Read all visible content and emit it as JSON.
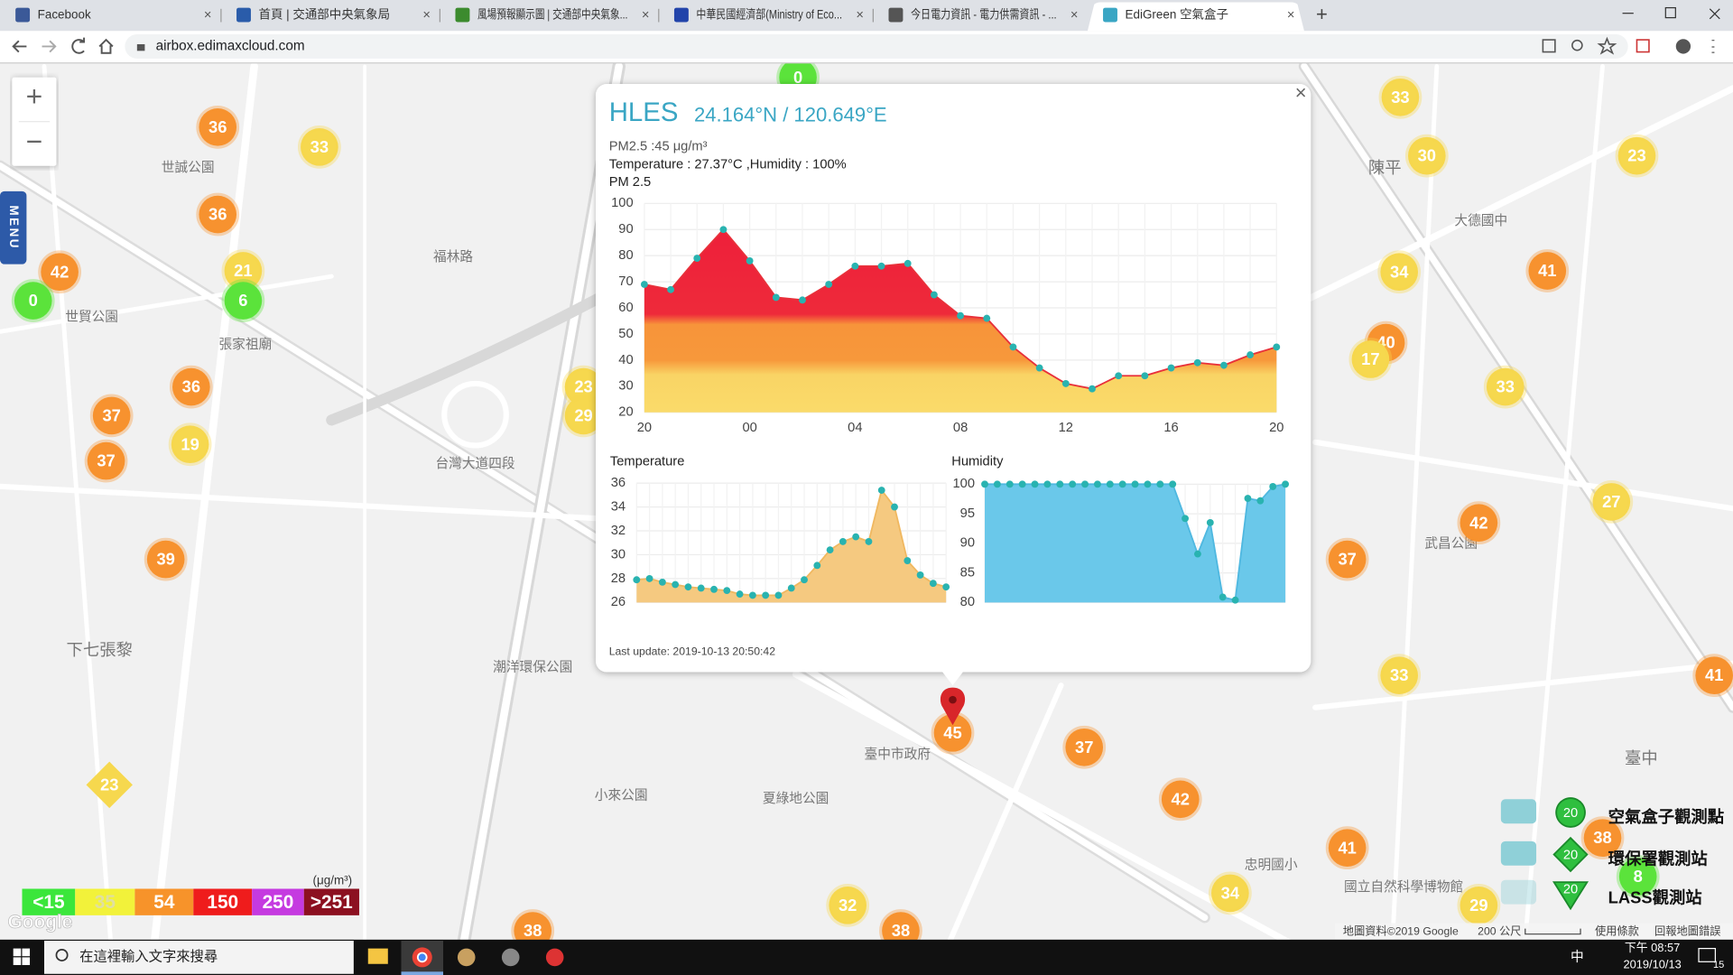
{
  "browser": {
    "tabs": [
      "Facebook",
      "首頁 | 交通部中央氣象局",
      "風場預報顯示圖 | 交通部中央氣象...",
      "中華民國經濟部(Ministry of Eco...",
      "今日電力資訊 - 電力供需資訊 - ...",
      "EdiGreen 空氣盒子"
    ],
    "url": "airbox.edimaxcloud.com"
  },
  "map": {
    "zoom_in": "+",
    "zoom_out": "−",
    "menu": "MENU",
    "markers": [
      {
        "label": 0,
        "color": "#5be33b"
      },
      {
        "label": 36,
        "color": "#f7922f"
      },
      {
        "label": 33,
        "color": "#f6d84e"
      },
      {
        "label": 36,
        "color": "#f7922f"
      },
      {
        "label": 42,
        "color": "#f7922f"
      },
      {
        "label": 21,
        "color": "#f6d84e"
      },
      {
        "label": 0,
        "color": "#5be33b"
      },
      {
        "label": 6,
        "color": "#5be33b"
      },
      {
        "label": 36,
        "color": "#f7922f"
      },
      {
        "label": 37,
        "color": "#f7922f"
      },
      {
        "label": 19,
        "color": "#f6d84e"
      },
      {
        "label": 37,
        "color": "#f7922f"
      },
      {
        "label": 23,
        "color": "#f6d84e"
      },
      {
        "label": 29,
        "color": "#f6d84e"
      },
      {
        "label": 39,
        "color": "#f7922f"
      },
      {
        "label": 33,
        "color": "#f6d84e"
      },
      {
        "label": 30,
        "color": "#f6d84e"
      },
      {
        "label": 23,
        "color": "#f6d84e"
      },
      {
        "label": 34,
        "color": "#f6d84e"
      },
      {
        "label": 41,
        "color": "#f7922f"
      },
      {
        "label": 40,
        "color": "#f7922f"
      },
      {
        "label": 17,
        "color": "#f6d84e"
      },
      {
        "label": 33,
        "color": "#f6d84e"
      },
      {
        "label": 27,
        "color": "#f6d84e"
      },
      {
        "label": 42,
        "color": "#f7922f"
      },
      {
        "label": 37,
        "color": "#f7922f"
      },
      {
        "label": 33,
        "color": "#f6d84e"
      },
      {
        "label": 41,
        "color": "#f7922f"
      },
      {
        "label": 45,
        "color": "#f7922f"
      },
      {
        "label": 37,
        "color": "#f7922f"
      },
      {
        "label": 42,
        "color": "#f7922f"
      },
      {
        "label": 41,
        "color": "#f7922f"
      },
      {
        "label": 38,
        "color": "#f7922f"
      },
      {
        "label": 8,
        "color": "#5be33b"
      },
      {
        "label": 34,
        "color": "#f6d84e"
      },
      {
        "label": 29,
        "color": "#f6d84e"
      },
      {
        "label": 32,
        "color": "#f6d84e"
      },
      {
        "label": 38,
        "color": "#f7922f"
      },
      {
        "label": 38,
        "color": "#f7922f"
      }
    ],
    "diamond_marker": {
      "label": 23,
      "color": "#f6d84e"
    },
    "places": [
      "世貿公園",
      "世誠公園",
      "福林路",
      "張家祖廟",
      "下七張黎",
      "臺中市政府",
      "夏綠地公園",
      "小來公園",
      "潮洋環保公園",
      "陳平",
      "大德國中",
      "武昌公園",
      "臺中",
      "國立自然科學博物館",
      "忠明國小",
      "台灣大道四段"
    ]
  },
  "legend": {
    "levels": [
      {
        "label": "<15",
        "color": "#3be63b"
      },
      {
        "label": "35",
        "color": "#f2f23a"
      },
      {
        "label": "54",
        "color": "#f7932a"
      },
      {
        "label": "150",
        "color": "#ef1c1c"
      },
      {
        "label": "250",
        "color": "#c53ae0"
      },
      {
        "label": ">251",
        "color": "#8c1020"
      }
    ],
    "unit": "(μg/m³)"
  },
  "station_legend": [
    {
      "label": "空氣盒子觀測點",
      "badge": "20"
    },
    {
      "label": "環保署觀測站",
      "badge": "20"
    },
    {
      "label": "LASS觀測站",
      "badge": "20"
    }
  ],
  "popup": {
    "title": "HLES",
    "coords": "24.164°N / 120.649°E",
    "pm25": "PM2.5 :45 μg/m³",
    "temp_hum": "Temperature : 27.37°C ,Humidity : 100%",
    "close": "×",
    "last_update": "Last update: 2019-10-13 20:50:42",
    "charts": [
      {
        "type": "area",
        "title": "PM 2.5",
        "categories": [
          "20",
          null,
          null,
          null,
          "00",
          null,
          null,
          null,
          "04",
          null,
          null,
          null,
          "08",
          null,
          null,
          null,
          "12",
          null,
          null,
          null,
          "16",
          null,
          null,
          null,
          "20"
        ],
        "values": [
          69,
          67,
          79,
          90,
          78,
          64,
          63,
          69,
          76,
          76,
          77,
          65,
          57,
          56,
          45,
          37,
          31,
          29,
          34,
          34,
          37,
          39,
          38,
          42,
          45
        ],
        "ylim": [
          20,
          100
        ],
        "yticks": [
          20,
          30,
          40,
          50,
          60,
          70,
          80,
          90,
          100
        ],
        "grid": true,
        "color": "#29b3b0"
      },
      {
        "type": "area",
        "title": "Temperature",
        "values": [
          27.9,
          28.0,
          27.7,
          27.5,
          27.3,
          27.2,
          27.1,
          27.0,
          26.7,
          26.6,
          26.6,
          26.6,
          27.2,
          27.9,
          29.1,
          30.4,
          31.1,
          31.5,
          31.1,
          35.4,
          34.0,
          29.5,
          28.3,
          27.6,
          27.3
        ],
        "ylim": [
          26,
          36
        ],
        "yticks": [
          26,
          28,
          30,
          32,
          34,
          36
        ],
        "grid": true,
        "color": "#29b3b0"
      },
      {
        "type": "area",
        "title": "Humidity",
        "values": [
          100,
          100,
          100,
          100,
          100,
          100,
          100,
          100,
          100,
          100,
          100,
          100,
          100,
          100,
          100,
          100,
          94.2,
          88.2,
          93.5,
          80.9,
          80.4,
          97.6,
          97.2,
          99.6,
          100
        ],
        "ylim": [
          80,
          100
        ],
        "yticks": [
          80,
          85,
          90,
          95,
          100
        ],
        "grid": true,
        "color": "#29b3b0"
      }
    ]
  },
  "attribution": {
    "logo": "Google",
    "data": "地圖資料©2019 Google",
    "scale": "200 公尺",
    "terms": "使用條款",
    "report": "回報地圖錯誤"
  },
  "taskbar": {
    "search": "在這裡輸入文字來搜尋",
    "ime": "中",
    "time": "下午 08:57",
    "date": "2019/10/13",
    "notify": "15"
  }
}
